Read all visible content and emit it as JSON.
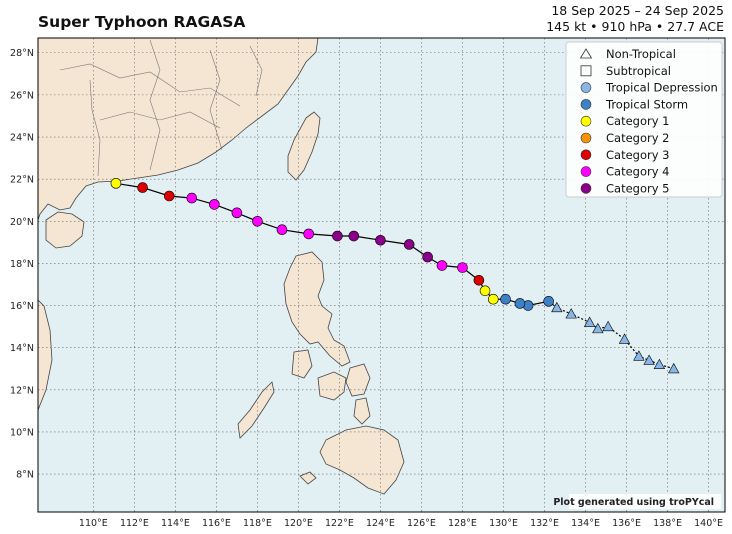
{
  "header": {
    "title": "Super Typhoon RAGASA",
    "date_range": "18 Sep 2025 – 24 Sep 2025",
    "stats": "145 kt • 910 hPa • 27.7 ACE"
  },
  "map": {
    "lon_ticks": [
      {
        "value": 110,
        "label": "110°E"
      },
      {
        "value": 112,
        "label": "112°E"
      },
      {
        "value": 114,
        "label": "114°E"
      },
      {
        "value": 116,
        "label": "116°E"
      },
      {
        "value": 118,
        "label": "118°E"
      },
      {
        "value": 120,
        "label": "120°E"
      },
      {
        "value": 122,
        "label": "122°E"
      },
      {
        "value": 124,
        "label": "124°E"
      },
      {
        "value": 126,
        "label": "126°E"
      },
      {
        "value": 128,
        "label": "128°E"
      },
      {
        "value": 130,
        "label": "130°E"
      },
      {
        "value": 132,
        "label": "132°E"
      },
      {
        "value": 134,
        "label": "134°E"
      },
      {
        "value": 136,
        "label": "136°E"
      },
      {
        "value": 138,
        "label": "138°E"
      },
      {
        "value": 140,
        "label": "140°E"
      }
    ],
    "lat_ticks": [
      {
        "value": 8,
        "label": "8°N"
      },
      {
        "value": 10,
        "label": "10°N"
      },
      {
        "value": 12,
        "label": "12°N"
      },
      {
        "value": 14,
        "label": "14°N"
      },
      {
        "value": 16,
        "label": "16°N"
      },
      {
        "value": 18,
        "label": "18°N"
      },
      {
        "value": 20,
        "label": "20°N"
      },
      {
        "value": 22,
        "label": "22°N"
      },
      {
        "value": 24,
        "label": "24°N"
      },
      {
        "value": 26,
        "label": "26°N"
      },
      {
        "value": 28,
        "label": "28°N"
      }
    ],
    "lon_range": [
      107.3,
      140.8
    ],
    "lat_range": [
      6.2,
      28.7
    ],
    "gridlines": "dotted",
    "colors": {
      "ocean": "#e2eff3",
      "land": "#f4e6d3",
      "coast": "#444444"
    },
    "credit": "Plot generated using troPYcal"
  },
  "legend": {
    "placement": "top-right",
    "items": [
      {
        "label": "Non-Tropical",
        "marker": "triangle",
        "fill": "none"
      },
      {
        "label": "Subtropical",
        "marker": "square",
        "fill": "none"
      },
      {
        "label": "Tropical Depression",
        "marker": "circle",
        "fill": "#88b6e6"
      },
      {
        "label": "Tropical Storm",
        "marker": "circle",
        "fill": "#3d81c6"
      },
      {
        "label": "Category 1",
        "marker": "circle",
        "fill": "#ffff00"
      },
      {
        "label": "Category 2",
        "marker": "circle",
        "fill": "#f5920c"
      },
      {
        "label": "Category 3",
        "marker": "circle",
        "fill": "#dd0000"
      },
      {
        "label": "Category 4",
        "marker": "circle",
        "fill": "#ff00ff"
      },
      {
        "label": "Category 5",
        "marker": "circle",
        "fill": "#8b0088"
      }
    ]
  },
  "track": [
    {
      "lon": 138.3,
      "lat": 13.0,
      "cat": "Tropical Depression",
      "marker": "triangle"
    },
    {
      "lon": 137.6,
      "lat": 13.2,
      "cat": "Tropical Depression",
      "marker": "triangle"
    },
    {
      "lon": 137.1,
      "lat": 13.4,
      "cat": "Tropical Depression",
      "marker": "triangle"
    },
    {
      "lon": 136.6,
      "lat": 13.6,
      "cat": "Tropical Depression",
      "marker": "triangle"
    },
    {
      "lon": 135.9,
      "lat": 14.4,
      "cat": "Tropical Depression",
      "marker": "triangle"
    },
    {
      "lon": 135.1,
      "lat": 15.0,
      "cat": "Tropical Depression",
      "marker": "triangle"
    },
    {
      "lon": 134.6,
      "lat": 14.9,
      "cat": "Tropical Depression",
      "marker": "triangle"
    },
    {
      "lon": 134.2,
      "lat": 15.2,
      "cat": "Tropical Depression",
      "marker": "triangle"
    },
    {
      "lon": 133.3,
      "lat": 15.6,
      "cat": "Tropical Depression",
      "marker": "triangle"
    },
    {
      "lon": 132.6,
      "lat": 15.9,
      "cat": "Tropical Depression",
      "marker": "triangle"
    },
    {
      "lon": 132.2,
      "lat": 16.2,
      "cat": "Tropical Storm",
      "marker": "circle"
    },
    {
      "lon": 131.2,
      "lat": 16.0,
      "cat": "Tropical Storm",
      "marker": "circle"
    },
    {
      "lon": 130.8,
      "lat": 16.1,
      "cat": "Tropical Storm",
      "marker": "circle"
    },
    {
      "lon": 130.1,
      "lat": 16.3,
      "cat": "Tropical Storm",
      "marker": "circle"
    },
    {
      "lon": 129.5,
      "lat": 16.3,
      "cat": "Category 1",
      "marker": "circle"
    },
    {
      "lon": 129.1,
      "lat": 16.7,
      "cat": "Category 1",
      "marker": "circle"
    },
    {
      "lon": 128.8,
      "lat": 17.2,
      "cat": "Category 3",
      "marker": "circle"
    },
    {
      "lon": 128.0,
      "lat": 17.8,
      "cat": "Category 4",
      "marker": "circle"
    },
    {
      "lon": 127.0,
      "lat": 17.9,
      "cat": "Category 4",
      "marker": "circle"
    },
    {
      "lon": 126.3,
      "lat": 18.3,
      "cat": "Category 5",
      "marker": "circle"
    },
    {
      "lon": 125.4,
      "lat": 18.9,
      "cat": "Category 5",
      "marker": "circle"
    },
    {
      "lon": 124.0,
      "lat": 19.1,
      "cat": "Category 5",
      "marker": "circle"
    },
    {
      "lon": 122.7,
      "lat": 19.3,
      "cat": "Category 5",
      "marker": "circle"
    },
    {
      "lon": 121.9,
      "lat": 19.3,
      "cat": "Category 5",
      "marker": "circle"
    },
    {
      "lon": 120.5,
      "lat": 19.4,
      "cat": "Category 4",
      "marker": "circle"
    },
    {
      "lon": 119.2,
      "lat": 19.6,
      "cat": "Category 4",
      "marker": "circle"
    },
    {
      "lon": 118.0,
      "lat": 20.0,
      "cat": "Category 4",
      "marker": "circle"
    },
    {
      "lon": 117.0,
      "lat": 20.4,
      "cat": "Category 4",
      "marker": "circle"
    },
    {
      "lon": 115.9,
      "lat": 20.8,
      "cat": "Category 4",
      "marker": "circle"
    },
    {
      "lon": 114.8,
      "lat": 21.1,
      "cat": "Category 4",
      "marker": "circle"
    },
    {
      "lon": 113.7,
      "lat": 21.2,
      "cat": "Category 3",
      "marker": "circle"
    },
    {
      "lon": 112.4,
      "lat": 21.6,
      "cat": "Category 3",
      "marker": "circle"
    },
    {
      "lon": 111.1,
      "lat": 21.8,
      "cat": "Category 1",
      "marker": "circle"
    }
  ]
}
